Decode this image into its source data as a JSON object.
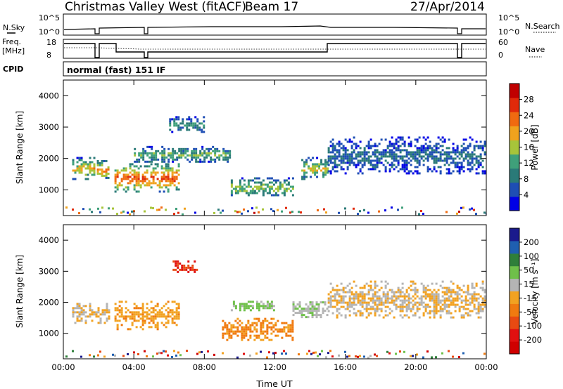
{
  "header": {
    "station": "Christmas Valley West (fitACF)",
    "beam": "Beam 17",
    "date": "27/Apr/2014"
  },
  "strips": {
    "nsky_label": "N.Sky",
    "nsky_ticks": [
      "10^5",
      "10^0"
    ],
    "nsearch_label": "N.Search",
    "nsearch_ticks": [
      "10^5",
      "10^0"
    ],
    "freq_label": "Freq.",
    "freq_unit": "[MHz]",
    "freq_ticks": [
      "18",
      "8"
    ],
    "nave_label": "Nave",
    "nave_ticks": [
      "60",
      "0"
    ],
    "cpid_label": "CPID",
    "cpid_value": "normal (fast) 151 IF"
  },
  "colors": {
    "power_scale": [
      "#0000e6",
      "#1e4eb4",
      "#2a7a78",
      "#3fa07a",
      "#a7c43a",
      "#f0a21d",
      "#f06a10",
      "#e02a0a",
      "#c00000"
    ],
    "velocity_scale": [
      "#1a1a8c",
      "#1f5fb0",
      "#2f7f3a",
      "#6fc04a",
      "#b4b4b4",
      "#f2a221",
      "#f07a10",
      "#e84a12",
      "#e01010",
      "#d00000"
    ]
  },
  "chart_data": [
    {
      "type": "heatmap",
      "title": "Power",
      "xlabel": "Time UT",
      "ylabel": "Slant Range [km]",
      "xlim_hours": [
        0,
        24
      ],
      "ylim_km": [
        180,
        4500
      ],
      "x_ticks": [
        "00:00",
        "04:00",
        "08:00",
        "12:00",
        "16:00",
        "20:00",
        "00:00"
      ],
      "y_ticks": [
        "1000",
        "2000",
        "3000",
        "4000"
      ],
      "colorbar": {
        "label": "Power [dB]",
        "min": 0,
        "max": 32,
        "ticks": [
          "4",
          "8",
          "12",
          "16",
          "20",
          "24",
          "28"
        ]
      },
      "regions": [
        {
          "t0": 0.5,
          "t1": 1.7,
          "center_km": 1700,
          "half_width_km": 350,
          "value": 20
        },
        {
          "t0": 1.9,
          "t1": 2.6,
          "center_km": 1650,
          "half_width_km": 300,
          "value": 22
        },
        {
          "t0": 2.9,
          "t1": 6.5,
          "center_km": 1400,
          "half_width_km": 450,
          "value": 26
        },
        {
          "t0": 6.0,
          "t1": 8.0,
          "center_km": 3100,
          "half_width_km": 250,
          "value": 12
        },
        {
          "t0": 4.0,
          "t1": 9.5,
          "center_km": 2150,
          "half_width_km": 250,
          "value": 14
        },
        {
          "t0": 9.5,
          "t1": 13.0,
          "center_km": 1100,
          "half_width_km": 300,
          "value": 16
        },
        {
          "t0": 13.5,
          "t1": 15.0,
          "center_km": 1700,
          "half_width_km": 350,
          "value": 18
        },
        {
          "t0": 15.0,
          "t1": 24.0,
          "center_km": 2100,
          "half_width_km": 600,
          "value": 8
        }
      ]
    },
    {
      "type": "heatmap",
      "title": "Velocity",
      "xlabel": "Time UT",
      "ylabel": "Slant Range [km]",
      "xlim_hours": [
        0,
        24
      ],
      "ylim_km": [
        180,
        4500
      ],
      "x_ticks": [
        "00:00",
        "04:00",
        "08:00",
        "12:00",
        "16:00",
        "20:00",
        "00:00"
      ],
      "y_ticks": [
        "1000",
        "2000",
        "3000",
        "4000"
      ],
      "colorbar": {
        "label": "Velocity [m s⁻¹]",
        "min": -250,
        "max": 250,
        "ticks": [
          "200",
          "100",
          "50",
          "15",
          "-15",
          "-50",
          "-100",
          "-200"
        ]
      },
      "regions": [
        {
          "t0": 0.5,
          "t1": 2.6,
          "center_km": 1700,
          "half_width_km": 350,
          "value": 0
        },
        {
          "t0": 2.9,
          "t1": 6.5,
          "center_km": 1600,
          "half_width_km": 450,
          "value": -40
        },
        {
          "t0": 6.2,
          "t1": 7.6,
          "center_km": 3150,
          "half_width_km": 200,
          "value": -150
        },
        {
          "t0": 9.0,
          "t1": 13.0,
          "center_km": 1150,
          "half_width_km": 350,
          "value": -60
        },
        {
          "t0": 9.5,
          "t1": 12.0,
          "center_km": 1900,
          "half_width_km": 150,
          "value": 60
        },
        {
          "t0": 13.0,
          "t1": 15.0,
          "center_km": 1800,
          "half_width_km": 300,
          "value": 40
        },
        {
          "t0": 15.0,
          "t1": 24.0,
          "center_km": 2100,
          "half_width_km": 600,
          "value": 0
        }
      ]
    }
  ]
}
